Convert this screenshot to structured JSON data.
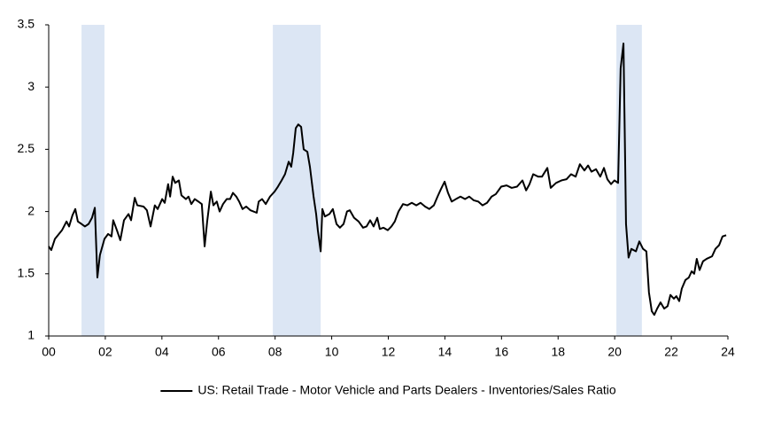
{
  "chart_data": {
    "type": "line",
    "x": [
      2000.0,
      2000.09,
      2000.22,
      2000.47,
      2000.63,
      2000.72,
      2000.84,
      2000.94,
      2001.03,
      2001.16,
      2001.28,
      2001.41,
      2001.53,
      2001.63,
      2001.72,
      2001.81,
      2001.97,
      2002.1,
      2002.22,
      2002.28,
      2002.41,
      2002.53,
      2002.66,
      2002.82,
      2002.91,
      2003.04,
      2003.13,
      2003.35,
      2003.47,
      2003.6,
      2003.75,
      2003.85,
      2004.01,
      2004.1,
      2004.22,
      2004.29,
      2004.38,
      2004.47,
      2004.6,
      2004.69,
      2004.85,
      2004.94,
      2005.04,
      2005.16,
      2005.29,
      2005.41,
      2005.51,
      2005.6,
      2005.73,
      2005.82,
      2005.94,
      2006.04,
      2006.16,
      2006.29,
      2006.41,
      2006.51,
      2006.63,
      2006.73,
      2006.85,
      2006.98,
      2007.13,
      2007.35,
      2007.42,
      2007.54,
      2007.67,
      2007.82,
      2007.98,
      2008.1,
      2008.23,
      2008.35,
      2008.48,
      2008.57,
      2008.64,
      2008.73,
      2008.82,
      2008.92,
      2009.01,
      2009.14,
      2009.23,
      2009.36,
      2009.45,
      2009.51,
      2009.61,
      2009.67,
      2009.76,
      2009.92,
      2010.04,
      2010.17,
      2010.29,
      2010.42,
      2010.54,
      2010.64,
      2010.79,
      2010.95,
      2011.11,
      2011.23,
      2011.36,
      2011.48,
      2011.61,
      2011.7,
      2011.83,
      2011.98,
      2012.11,
      2012.23,
      2012.36,
      2012.52,
      2012.67,
      2012.83,
      2012.99,
      2013.14,
      2013.3,
      2013.45,
      2013.61,
      2013.74,
      2013.86,
      2013.99,
      2014.11,
      2014.24,
      2014.39,
      2014.55,
      2014.71,
      2014.86,
      2015.02,
      2015.18,
      2015.33,
      2015.49,
      2015.65,
      2015.8,
      2015.99,
      2016.18,
      2016.36,
      2016.55,
      2016.74,
      2016.87,
      2016.99,
      2017.12,
      2017.3,
      2017.43,
      2017.62,
      2017.74,
      2017.93,
      2018.12,
      2018.3,
      2018.46,
      2018.62,
      2018.77,
      2018.93,
      2019.06,
      2019.18,
      2019.34,
      2019.49,
      2019.62,
      2019.74,
      2019.87,
      2019.99,
      2020.12,
      2020.21,
      2020.31,
      2020.37,
      2020.4,
      2020.49,
      2020.59,
      2020.75,
      2020.87,
      2021.0,
      2021.12,
      2021.21,
      2021.31,
      2021.4,
      2021.5,
      2021.62,
      2021.75,
      2021.87,
      2021.97,
      2022.09,
      2022.18,
      2022.28,
      2022.37,
      2022.5,
      2022.62,
      2022.72,
      2022.81,
      2022.9,
      2023.0,
      2023.12,
      2023.25,
      2023.44,
      2023.56,
      2023.69,
      2023.81,
      2023.94
    ],
    "series": [
      {
        "name": "US: Retail Trade - Motor Vehicle and Parts Dealers - Inventories/Sales Ratio",
        "color": "#000000",
        "values": [
          1.72,
          1.69,
          1.78,
          1.85,
          1.92,
          1.88,
          1.97,
          2.02,
          1.92,
          1.9,
          1.88,
          1.9,
          1.95,
          2.03,
          1.47,
          1.65,
          1.78,
          1.82,
          1.8,
          1.93,
          1.85,
          1.77,
          1.93,
          1.98,
          1.93,
          2.11,
          2.05,
          2.04,
          2.01,
          1.88,
          2.05,
          2.02,
          2.1,
          2.07,
          2.22,
          2.12,
          2.28,
          2.23,
          2.25,
          2.13,
          2.1,
          2.12,
          2.06,
          2.1,
          2.08,
          2.06,
          1.72,
          1.92,
          2.16,
          2.05,
          2.08,
          2.0,
          2.06,
          2.1,
          2.1,
          2.15,
          2.12,
          2.08,
          2.02,
          2.04,
          2.01,
          1.99,
          2.08,
          2.1,
          2.06,
          2.12,
          2.16,
          2.2,
          2.25,
          2.3,
          2.4,
          2.36,
          2.47,
          2.67,
          2.7,
          2.68,
          2.5,
          2.48,
          2.36,
          2.12,
          1.98,
          1.85,
          1.68,
          2.02,
          1.96,
          1.98,
          2.02,
          1.9,
          1.87,
          1.9,
          2.0,
          2.01,
          1.95,
          1.92,
          1.87,
          1.88,
          1.93,
          1.88,
          1.95,
          1.86,
          1.87,
          1.85,
          1.88,
          1.92,
          2.0,
          2.06,
          2.05,
          2.07,
          2.05,
          2.07,
          2.04,
          2.02,
          2.05,
          2.12,
          2.18,
          2.24,
          2.15,
          2.08,
          2.1,
          2.12,
          2.1,
          2.12,
          2.09,
          2.08,
          2.05,
          2.07,
          2.12,
          2.14,
          2.2,
          2.21,
          2.19,
          2.2,
          2.25,
          2.17,
          2.22,
          2.3,
          2.28,
          2.28,
          2.35,
          2.19,
          2.23,
          2.25,
          2.26,
          2.3,
          2.28,
          2.38,
          2.33,
          2.37,
          2.32,
          2.34,
          2.28,
          2.35,
          2.26,
          2.22,
          2.25,
          2.23,
          3.15,
          3.35,
          2.4,
          1.9,
          1.63,
          1.7,
          1.68,
          1.76,
          1.7,
          1.68,
          1.35,
          1.2,
          1.17,
          1.22,
          1.27,
          1.22,
          1.24,
          1.33,
          1.3,
          1.32,
          1.28,
          1.38,
          1.45,
          1.47,
          1.52,
          1.5,
          1.62,
          1.53,
          1.6,
          1.62,
          1.64,
          1.7,
          1.73,
          1.8,
          1.81
        ]
      }
    ],
    "shaded_periods": [
      [
        2001.16,
        2001.97
      ],
      [
        2007.92,
        2009.61
      ],
      [
        2020.06,
        2020.96
      ]
    ],
    "shade_color": "#dce6f4",
    "xlim": [
      2000,
      2024
    ],
    "xticks": [
      {
        "value": 2000,
        "label": "00"
      },
      {
        "value": 2002,
        "label": "02"
      },
      {
        "value": 2004,
        "label": "04"
      },
      {
        "value": 2006,
        "label": "06"
      },
      {
        "value": 2008,
        "label": "08"
      },
      {
        "value": 2010,
        "label": "10"
      },
      {
        "value": 2012,
        "label": "12"
      },
      {
        "value": 2014,
        "label": "14"
      },
      {
        "value": 2016,
        "label": "16"
      },
      {
        "value": 2018,
        "label": "18"
      },
      {
        "value": 2020,
        "label": "20"
      },
      {
        "value": 2022,
        "label": "22"
      },
      {
        "value": 2024,
        "label": "24"
      }
    ],
    "ylim": [
      1,
      3.5
    ],
    "yticks": [
      1,
      1.5,
      2,
      2.5,
      3,
      3.5
    ],
    "grid": false,
    "legend": "bottom"
  }
}
